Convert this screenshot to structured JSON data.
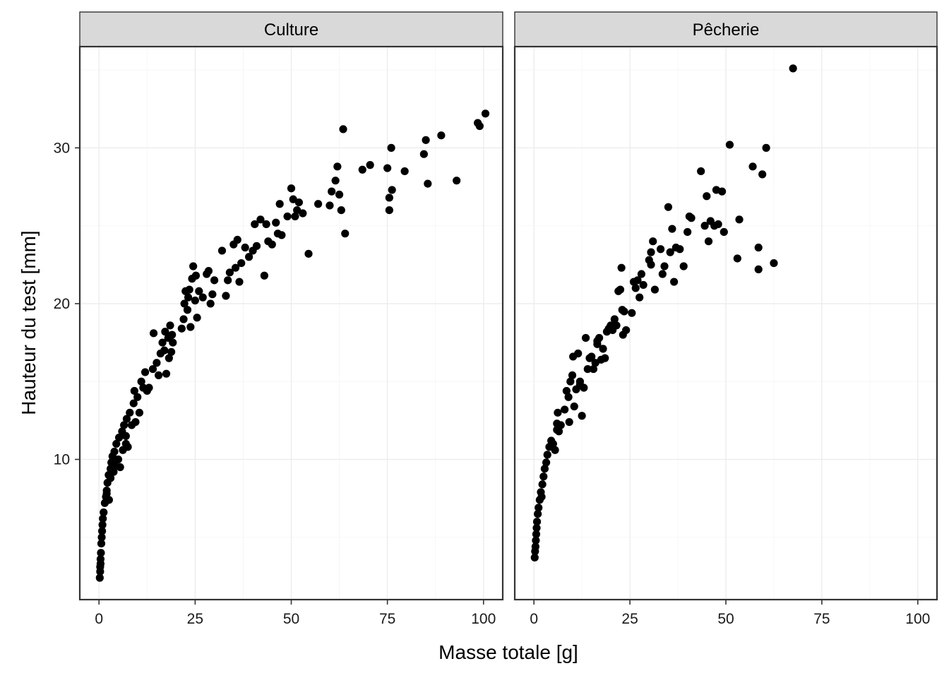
{
  "chart_data": {
    "type": "scatter",
    "xlabel": "Masse totale  [g]",
    "ylabel": "Hauteur du test  [mm]",
    "xlim": [
      -5,
      105
    ],
    "ylim": [
      1.0,
      36.5
    ],
    "x_ticks": [
      0,
      25,
      50,
      75,
      100
    ],
    "y_ticks": [
      10,
      20,
      30
    ],
    "grid": true,
    "point_color": "#000000",
    "panels": [
      {
        "name": "Culture",
        "points": [
          [
            0.2,
            2.4
          ],
          [
            0.3,
            2.8
          ],
          [
            0.3,
            3.1
          ],
          [
            0.4,
            3.3
          ],
          [
            0.4,
            3.6
          ],
          [
            0.5,
            4.0
          ],
          [
            0.6,
            4.6
          ],
          [
            0.7,
            5.0
          ],
          [
            0.8,
            5.4
          ],
          [
            0.9,
            5.8
          ],
          [
            1.0,
            6.2
          ],
          [
            1.2,
            6.6
          ],
          [
            1.5,
            7.2
          ],
          [
            1.8,
            7.6
          ],
          [
            2.0,
            8.0
          ],
          [
            2.2,
            8.5
          ],
          [
            2.5,
            9.0
          ],
          [
            2.6,
            7.4
          ],
          [
            3.0,
            9.4
          ],
          [
            3.2,
            9.8
          ],
          [
            3.5,
            10.2
          ],
          [
            3.0,
            8.8
          ],
          [
            4.0,
            10.5
          ],
          [
            4.2,
            9.6
          ],
          [
            4.5,
            11.0
          ],
          [
            5.0,
            10.0
          ],
          [
            5.2,
            11.4
          ],
          [
            5.5,
            9.5
          ],
          [
            6.0,
            11.8
          ],
          [
            6.2,
            10.6
          ],
          [
            6.5,
            12.2
          ],
          [
            7.0,
            11.0
          ],
          [
            7.2,
            12.6
          ],
          [
            7.5,
            10.8
          ],
          [
            8.0,
            13.0
          ],
          [
            8.5,
            12.2
          ],
          [
            9.0,
            13.6
          ],
          [
            9.2,
            14.4
          ],
          [
            9.5,
            12.4
          ],
          [
            10.0,
            14.0
          ],
          [
            10.5,
            13.0
          ],
          [
            11.0,
            15.0
          ],
          [
            11.5,
            14.6
          ],
          [
            12.0,
            15.6
          ],
          [
            13.0,
            14.6
          ],
          [
            14.0,
            15.8
          ],
          [
            14.2,
            18.1
          ],
          [
            15.0,
            16.2
          ],
          [
            15.5,
            15.4
          ],
          [
            16.0,
            16.8
          ],
          [
            16.5,
            17.5
          ],
          [
            17.0,
            17.0
          ],
          [
            17.2,
            18.2
          ],
          [
            17.5,
            15.5
          ],
          [
            18.0,
            17.8
          ],
          [
            18.2,
            16.5
          ],
          [
            18.5,
            18.6
          ],
          [
            19.0,
            18.0
          ],
          [
            19.2,
            17.5
          ],
          [
            18.8,
            16.9
          ],
          [
            21.5,
            18.4
          ],
          [
            22.0,
            19.0
          ],
          [
            22.2,
            20.0
          ],
          [
            22.5,
            20.8
          ],
          [
            23.0,
            19.6
          ],
          [
            23.2,
            20.4
          ],
          [
            23.5,
            20.9
          ],
          [
            23.8,
            18.5
          ],
          [
            24.2,
            21.6
          ],
          [
            24.5,
            22.4
          ],
          [
            25.0,
            20.2
          ],
          [
            25.2,
            21.8
          ],
          [
            25.5,
            19.1
          ],
          [
            26.0,
            20.8
          ],
          [
            27.0,
            20.4
          ],
          [
            28.0,
            21.9
          ],
          [
            28.5,
            22.1
          ],
          [
            29.0,
            20.0
          ],
          [
            29.5,
            20.6
          ],
          [
            30.0,
            21.5
          ],
          [
            32.0,
            23.4
          ],
          [
            33.0,
            20.5
          ],
          [
            33.5,
            21.5
          ],
          [
            34.0,
            22.0
          ],
          [
            35.0,
            23.8
          ],
          [
            35.5,
            22.3
          ],
          [
            36.0,
            24.1
          ],
          [
            36.5,
            21.4
          ],
          [
            37.0,
            22.6
          ],
          [
            38.0,
            23.6
          ],
          [
            39.0,
            23.0
          ],
          [
            40.0,
            23.4
          ],
          [
            40.5,
            25.1
          ],
          [
            41.0,
            23.7
          ],
          [
            42.0,
            25.4
          ],
          [
            43.0,
            21.8
          ],
          [
            43.5,
            25.1
          ],
          [
            44.0,
            24.0
          ],
          [
            45.0,
            23.8
          ],
          [
            46.0,
            25.2
          ],
          [
            46.5,
            24.5
          ],
          [
            47.0,
            26.4
          ],
          [
            47.5,
            24.4
          ],
          [
            49.0,
            25.6
          ],
          [
            50.0,
            27.4
          ],
          [
            50.5,
            26.7
          ],
          [
            51.0,
            25.6
          ],
          [
            51.5,
            26.0
          ],
          [
            52.0,
            26.5
          ],
          [
            53.0,
            25.8
          ],
          [
            54.5,
            23.2
          ],
          [
            57.0,
            26.4
          ],
          [
            60.0,
            26.3
          ],
          [
            60.5,
            27.2
          ],
          [
            61.5,
            27.9
          ],
          [
            62.0,
            28.8
          ],
          [
            62.5,
            27.0
          ],
          [
            63.0,
            26.0
          ],
          [
            63.5,
            31.2
          ],
          [
            64.0,
            24.5
          ],
          [
            68.5,
            28.6
          ],
          [
            70.5,
            28.9
          ],
          [
            75.0,
            28.7
          ],
          [
            75.5,
            26.8
          ],
          [
            76.0,
            30.0
          ],
          [
            76.2,
            27.3
          ],
          [
            79.5,
            28.5
          ],
          [
            84.5,
            29.6
          ],
          [
            85.0,
            30.5
          ],
          [
            85.5,
            27.7
          ],
          [
            89.0,
            30.8
          ],
          [
            93.0,
            27.9
          ],
          [
            98.5,
            31.6
          ],
          [
            99.0,
            31.4
          ],
          [
            100.5,
            32.2
          ],
          [
            75.5,
            26.0
          ],
          [
            2.0,
            7.8
          ],
          [
            3.8,
            9.2
          ],
          [
            7.0,
            11.5
          ],
          [
            12.5,
            14.4
          ]
        ]
      },
      {
        "name": "Pêcherie",
        "points": [
          [
            0.2,
            3.7
          ],
          [
            0.3,
            4.1
          ],
          [
            0.4,
            4.4
          ],
          [
            0.5,
            4.8
          ],
          [
            0.6,
            5.2
          ],
          [
            0.7,
            5.6
          ],
          [
            0.8,
            6.0
          ],
          [
            1.0,
            6.5
          ],
          [
            1.2,
            6.9
          ],
          [
            1.5,
            7.4
          ],
          [
            1.8,
            7.9
          ],
          [
            2.2,
            8.4
          ],
          [
            2.5,
            8.9
          ],
          [
            2.8,
            9.4
          ],
          [
            3.2,
            9.8
          ],
          [
            3.5,
            10.3
          ],
          [
            4.0,
            10.8
          ],
          [
            4.5,
            11.2
          ],
          [
            5.0,
            11.0
          ],
          [
            5.5,
            10.6
          ],
          [
            6.0,
            12.3
          ],
          [
            6.2,
            13.0
          ],
          [
            6.5,
            11.8
          ],
          [
            7.0,
            12.2
          ],
          [
            8.0,
            13.2
          ],
          [
            8.5,
            14.4
          ],
          [
            9.0,
            14.0
          ],
          [
            9.2,
            12.4
          ],
          [
            9.5,
            15.0
          ],
          [
            10.0,
            15.4
          ],
          [
            10.2,
            16.6
          ],
          [
            10.5,
            13.4
          ],
          [
            11.0,
            14.5
          ],
          [
            11.5,
            16.8
          ],
          [
            12.0,
            15.0
          ],
          [
            12.5,
            12.8
          ],
          [
            13.0,
            14.6
          ],
          [
            13.5,
            17.8
          ],
          [
            14.0,
            15.8
          ],
          [
            14.5,
            16.5
          ],
          [
            15.0,
            16.6
          ],
          [
            15.5,
            15.8
          ],
          [
            16.0,
            16.2
          ],
          [
            16.5,
            17.4
          ],
          [
            17.0,
            17.8
          ],
          [
            17.5,
            16.4
          ],
          [
            18.0,
            17.1
          ],
          [
            18.5,
            16.5
          ],
          [
            19.0,
            18.2
          ],
          [
            19.5,
            18.4
          ],
          [
            20.0,
            18.6
          ],
          [
            20.5,
            18.3
          ],
          [
            21.0,
            19.0
          ],
          [
            21.5,
            18.6
          ],
          [
            22.0,
            20.8
          ],
          [
            22.5,
            20.9
          ],
          [
            23.0,
            19.6
          ],
          [
            23.2,
            18.0
          ],
          [
            23.5,
            19.5
          ],
          [
            24.0,
            18.3
          ],
          [
            22.8,
            22.3
          ],
          [
            25.5,
            19.4
          ],
          [
            26.0,
            21.4
          ],
          [
            26.5,
            21.0
          ],
          [
            27.0,
            21.5
          ],
          [
            27.5,
            20.4
          ],
          [
            28.0,
            21.9
          ],
          [
            28.5,
            21.2
          ],
          [
            30.0,
            22.8
          ],
          [
            30.5,
            23.3
          ],
          [
            31.0,
            24.0
          ],
          [
            31.5,
            20.9
          ],
          [
            33.0,
            23.5
          ],
          [
            33.5,
            21.9
          ],
          [
            34.0,
            22.4
          ],
          [
            35.0,
            26.2
          ],
          [
            35.5,
            23.3
          ],
          [
            36.0,
            24.8
          ],
          [
            36.5,
            21.4
          ],
          [
            37.0,
            23.6
          ],
          [
            38.0,
            23.5
          ],
          [
            39.0,
            22.4
          ],
          [
            40.0,
            24.6
          ],
          [
            40.5,
            25.6
          ],
          [
            41.0,
            25.5
          ],
          [
            43.5,
            28.5
          ],
          [
            44.5,
            25.0
          ],
          [
            45.0,
            26.9
          ],
          [
            45.5,
            24.0
          ],
          [
            46.0,
            25.3
          ],
          [
            47.0,
            25.0
          ],
          [
            47.5,
            27.3
          ],
          [
            48.0,
            25.1
          ],
          [
            49.0,
            27.2
          ],
          [
            49.5,
            24.6
          ],
          [
            51.0,
            30.2
          ],
          [
            53.0,
            22.9
          ],
          [
            53.5,
            25.4
          ],
          [
            57.0,
            28.8
          ],
          [
            58.5,
            23.6
          ],
          [
            58.5,
            22.2
          ],
          [
            59.5,
            28.3
          ],
          [
            60.5,
            30.0
          ],
          [
            62.5,
            22.6
          ],
          [
            67.5,
            35.1
          ],
          [
            30.5,
            22.5
          ],
          [
            16.5,
            17.6
          ],
          [
            12.0,
            14.8
          ],
          [
            6.0,
            11.9
          ],
          [
            2.0,
            7.6
          ]
        ]
      }
    ]
  }
}
